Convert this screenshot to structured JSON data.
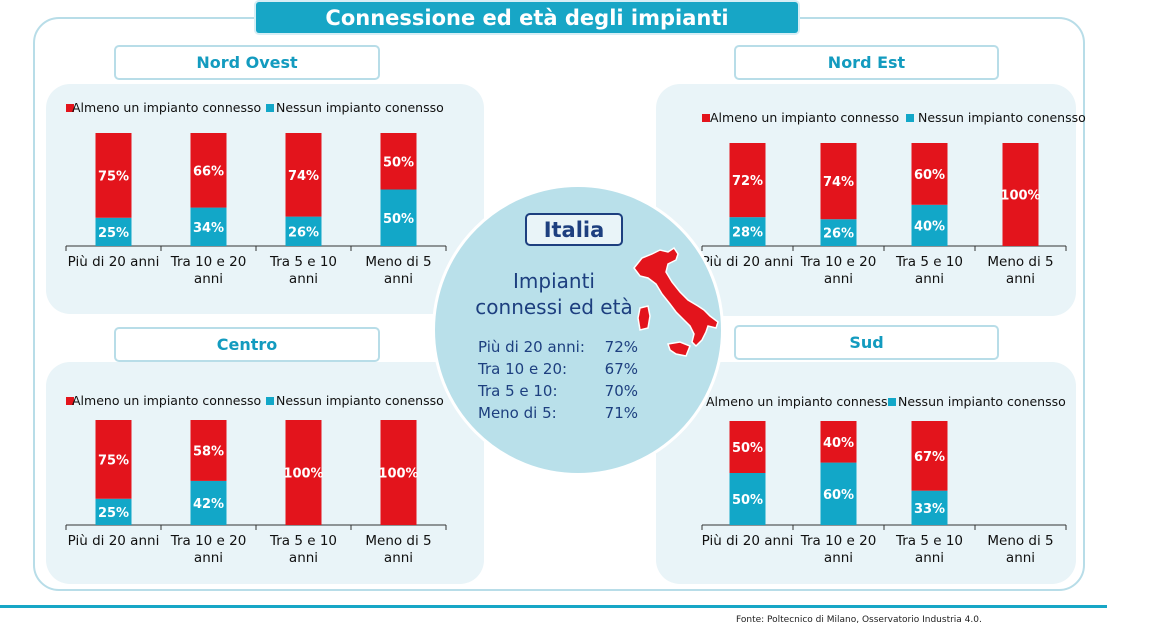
{
  "title": "Connessione ed età degli impianti",
  "source": "Fonte: Poltecnico di Milano, Osservatorio Industria 4.0.",
  "colors": {
    "connected": "#e3141c",
    "not_connected": "#12a7c8",
    "accent": "#17a6c6",
    "navy": "#1d3f7f"
  },
  "legend": {
    "connected": "Almeno un impianto connesso",
    "not_connected": "Nessun impianto conensso"
  },
  "italia": {
    "badge": "Italia",
    "title_line1": "Impianti",
    "title_line2": "connessi ed età",
    "rows": [
      {
        "label": "Più di 20 anni:",
        "value": "72%"
      },
      {
        "label": "Tra 10 e 20:",
        "value": "67%"
      },
      {
        "label": "Tra 5 e 10:",
        "value": "70%"
      },
      {
        "label": "Meno di 5:",
        "value": "71%"
      }
    ]
  },
  "chart_data": [
    {
      "type": "bar",
      "stacked": true,
      "region": "Nord Ovest",
      "categories": [
        [
          "Più di 20 anni"
        ],
        [
          "Tra 10 e 20",
          "anni"
        ],
        [
          "Tra 5 e 10",
          "anni"
        ],
        [
          "Meno di 5",
          "anni"
        ]
      ],
      "series": [
        {
          "name": "Almeno un impianto connesso",
          "values": [
            75,
            66,
            74,
            50
          ]
        },
        {
          "name": "Nessun impianto conensso",
          "values": [
            25,
            34,
            26,
            50
          ]
        }
      ],
      "ylim": [
        0,
        100
      ],
      "legend": "top-left"
    },
    {
      "type": "bar",
      "stacked": true,
      "region": "Nord Est",
      "categories": [
        [
          "Più di 20 anni"
        ],
        [
          "Tra 10 e 20",
          "anni"
        ],
        [
          "Tra 5 e 10",
          "anni"
        ],
        [
          "Meno di 5",
          "anni"
        ]
      ],
      "series": [
        {
          "name": "Almeno un impianto connesso",
          "values": [
            72,
            74,
            60,
            100
          ]
        },
        {
          "name": "Nessun impianto conensso",
          "values": [
            28,
            26,
            40,
            0
          ]
        }
      ],
      "ylim": [
        0,
        100
      ],
      "legend": "top-left"
    },
    {
      "type": "bar",
      "stacked": true,
      "region": "Centro",
      "categories": [
        [
          "Più di 20 anni"
        ],
        [
          "Tra 10 e 20",
          "anni"
        ],
        [
          "Tra 5 e 10",
          "anni"
        ],
        [
          "Meno di 5",
          "anni"
        ]
      ],
      "series": [
        {
          "name": "Almeno un impianto connesso",
          "values": [
            75,
            58,
            100,
            100
          ]
        },
        {
          "name": "Nessun impianto conensso",
          "values": [
            25,
            42,
            0,
            0
          ]
        }
      ],
      "ylim": [
        0,
        100
      ],
      "legend": "top-left"
    },
    {
      "type": "bar",
      "stacked": true,
      "region": "Sud",
      "categories": [
        [
          "Più di 20 anni"
        ],
        [
          "Tra 10 e 20",
          "anni"
        ],
        [
          "Tra 5 e 10",
          "anni"
        ],
        [
          "Meno di 5",
          "anni"
        ]
      ],
      "series": [
        {
          "name": "Almeno un impianto connesso",
          "values": [
            50,
            40,
            67,
            0
          ]
        },
        {
          "name": "Nessun impianto conensso",
          "values": [
            50,
            60,
            33,
            0
          ]
        }
      ],
      "ylim": [
        0,
        100
      ],
      "legend": "top-left"
    }
  ]
}
